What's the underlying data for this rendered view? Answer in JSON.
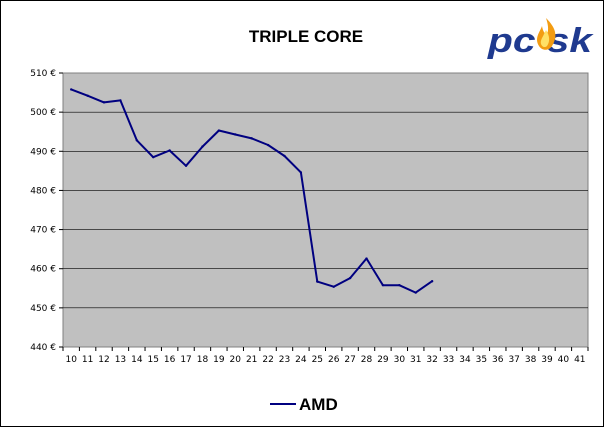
{
  "logo": {
    "text": "pcask",
    "colors": {
      "main": "#1f3a8f",
      "flame": "#f39c12"
    }
  },
  "chart_data": {
    "type": "line",
    "title": "TRIPLE CORE",
    "xlabel": "",
    "ylabel": "",
    "x": [
      10,
      11,
      12,
      13,
      14,
      15,
      16,
      17,
      18,
      19,
      20,
      21,
      22,
      23,
      24,
      25,
      26,
      27,
      28,
      29,
      30,
      31,
      32
    ],
    "x_ticks": [
      10,
      11,
      12,
      13,
      14,
      15,
      16,
      17,
      18,
      19,
      20,
      21,
      22,
      23,
      24,
      25,
      26,
      27,
      28,
      29,
      30,
      31,
      32,
      33,
      34,
      35,
      36,
      37,
      38,
      39,
      40,
      41
    ],
    "y_ticks": [
      440,
      450,
      460,
      470,
      480,
      490,
      500,
      510
    ],
    "y_tick_suffix": " €",
    "ylim": [
      440,
      510
    ],
    "grid": true,
    "legend_position": "bottom",
    "series": [
      {
        "name": "AMD",
        "color": "#000080",
        "values": [
          505.8,
          504.2,
          502.5,
          503.0,
          492.8,
          488.5,
          490.2,
          486.3,
          491.2,
          495.3,
          494.3,
          493.3,
          491.6,
          488.8,
          484.6,
          456.7,
          455.4,
          457.6,
          462.6,
          455.8,
          455.8,
          453.9,
          456.8
        ]
      }
    ]
  }
}
